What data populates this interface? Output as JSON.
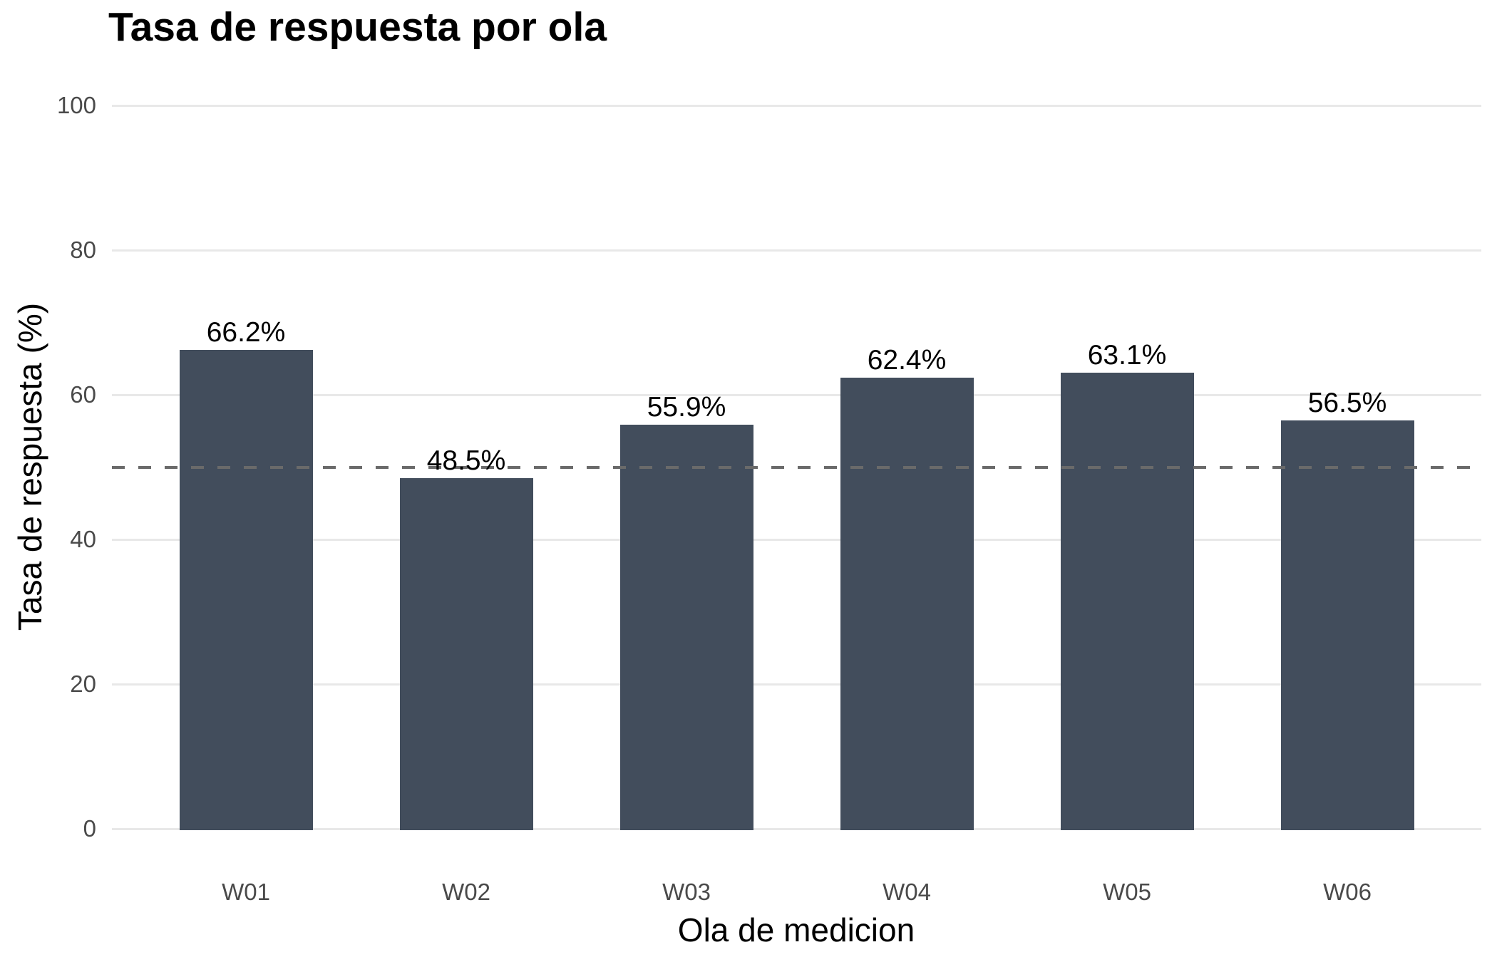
{
  "chart_data": {
    "type": "bar",
    "title": "Tasa de respuesta por ola",
    "xlabel": "Ola de medicion",
    "ylabel": "Tasa de respuesta (%)",
    "categories": [
      "W01",
      "W02",
      "W03",
      "W04",
      "W05",
      "W06"
    ],
    "values": [
      66.2,
      48.5,
      55.9,
      62.4,
      63.1,
      56.5
    ],
    "value_labels": [
      "66.2%",
      "48.5%",
      "55.9%",
      "62.4%",
      "63.1%",
      "56.5%"
    ],
    "ylim": [
      0,
      100
    ],
    "y_ticks": [
      0,
      20,
      40,
      60,
      80,
      100
    ],
    "reference_line_y": 50,
    "grid": "horizontal",
    "legend": "none",
    "colors": {
      "bar_fill": "#424D5C",
      "reference_line": "#6a6a6a",
      "gridline": "#e8e8e8",
      "tick_label": "#4a4a4a",
      "title": "#000000",
      "background": "#ffffff"
    }
  }
}
